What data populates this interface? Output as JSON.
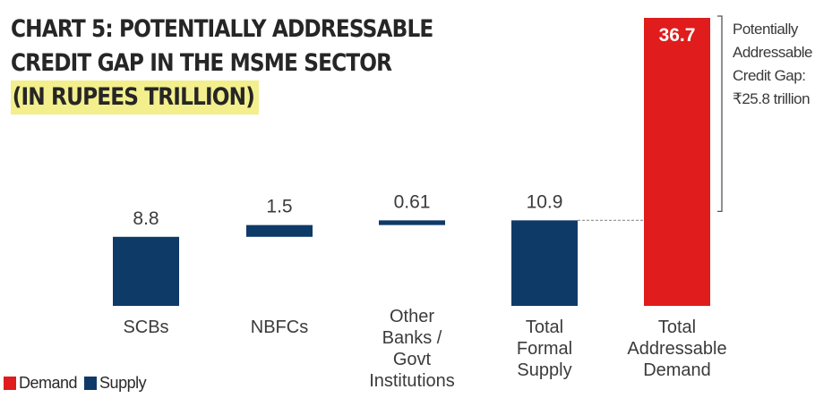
{
  "title": {
    "line1": "CHART 5: POTENTIALLY ADDRESSABLE",
    "line2": "CREDIT GAP IN THE MSME SECTOR",
    "line3": "(IN RUPEES TRILLION)"
  },
  "colors": {
    "demand": "#e01c1c",
    "supply": "#0e3a68",
    "highlight": "#f3ef8c"
  },
  "annotation": {
    "line1": "Potentially",
    "line2": "Addressable",
    "line3": "Credit Gap:",
    "line4": "₹25.8 trillion"
  },
  "legend": {
    "demand": "Demand",
    "supply": "Supply"
  },
  "chart_data": {
    "type": "bar",
    "subtype": "waterfall",
    "categories": [
      "SCBs",
      "NBFCs",
      "Other Banks / Govt Institutions",
      "Total Formal Supply",
      "Total Addressable Demand"
    ],
    "category_label_lines": [
      [
        "SCBs"
      ],
      [
        "NBFCs"
      ],
      [
        "Other",
        "Banks /",
        "Govt",
        "Institutions"
      ],
      [
        "Total",
        "Formal",
        "Supply"
      ],
      [
        "Total",
        "Addressable",
        "Demand"
      ]
    ],
    "series": [
      {
        "name": "Supply",
        "values": [
          8.8,
          1.5,
          0.61,
          10.9,
          null
        ]
      },
      {
        "name": "Demand",
        "values": [
          null,
          null,
          null,
          null,
          36.7
        ]
      }
    ],
    "value_labels": [
      "8.8",
      "1.5",
      "0.61",
      "10.9",
      "36.7"
    ],
    "bars": [
      {
        "category": "SCBs",
        "start": 0,
        "end": 8.8,
        "series": "Supply"
      },
      {
        "category": "NBFCs",
        "start": 8.8,
        "end": 10.3,
        "series": "Supply"
      },
      {
        "category": "Other Banks / Govt Institutions",
        "start": 10.3,
        "end": 10.9,
        "series": "Supply"
      },
      {
        "category": "Total Formal Supply",
        "start": 0,
        "end": 10.9,
        "series": "Supply"
      },
      {
        "category": "Total Addressable Demand",
        "start": 0,
        "end": 36.7,
        "series": "Demand"
      }
    ],
    "ylim": [
      0,
      36.7
    ],
    "grid": false,
    "legend_position": "bottom-left"
  }
}
